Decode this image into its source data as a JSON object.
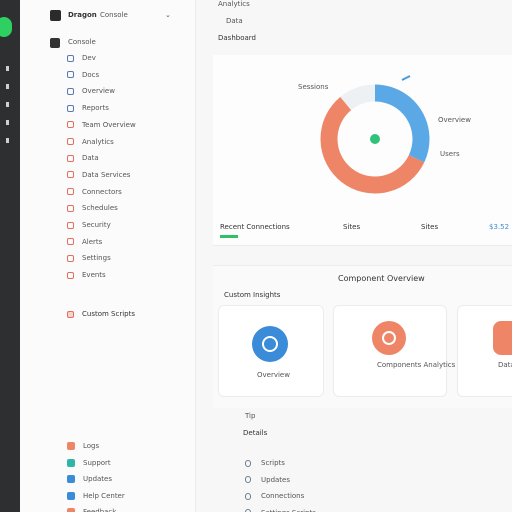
{
  "sidebar": {
    "brand": "Dragon",
    "brand_sub": "Console",
    "section": "Console",
    "nav": [
      "Dev",
      "Docs",
      "Overview",
      "Reports",
      "Team Overview",
      "Analytics",
      "Data",
      "Data Services",
      "Connectors",
      "Schedules",
      "Security",
      "Alerts",
      "Settings",
      "Events"
    ],
    "featured": "Custom Scripts",
    "bottom": [
      "Logs",
      "Support",
      "Updates",
      "Help Center",
      "Feedback"
    ]
  },
  "header": {
    "crumb": "Analytics",
    "sub": "Data",
    "title": "Dashboard"
  },
  "donut": {
    "labels": [
      "Sessions",
      "Overview",
      "Users"
    ],
    "segments": [
      {
        "color": "#5aa8e6",
        "value": 32
      },
      {
        "color": "#ee8566",
        "value": 57
      },
      {
        "color": "#edf1f4",
        "value": 11
      }
    ]
  },
  "stats": [
    "Recent Connections",
    "Sites",
    "Sites",
    "$3.52"
  ],
  "section": {
    "title": "Component Overview",
    "subtitle": "Custom Insights",
    "cards": [
      "Overview",
      "Components Analytics",
      "Data"
    ]
  },
  "list": {
    "title": "Tip",
    "subtitle": "Details",
    "items": [
      "Scripts",
      "Updates",
      "Connections",
      "Settings Scripts"
    ]
  }
}
